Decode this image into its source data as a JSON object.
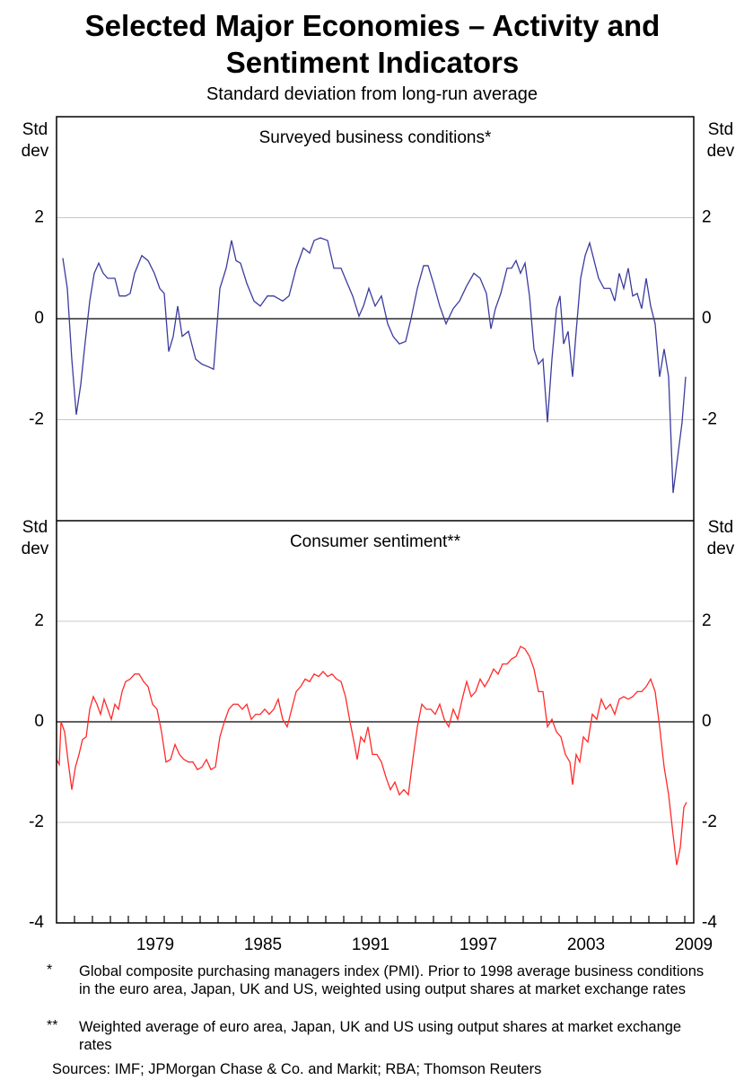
{
  "title": "Selected Major Economies – Activity and Sentiment  Indicators",
  "subtitle": "Standard deviation from long-run average",
  "chart_data": [
    {
      "type": "line",
      "title": "Surveyed business conditions*",
      "ylabel": "Std dev",
      "xlim": [
        1974,
        2009.5
      ],
      "ylim": [
        -4,
        4
      ],
      "yticks": [
        -2,
        0,
        2
      ],
      "grid": true,
      "x": [
        1974.35,
        1974.6,
        1974.85,
        1975.1,
        1975.35,
        1975.6,
        1975.85,
        1976.1,
        1976.35,
        1976.6,
        1976.85,
        1977.25,
        1977.5,
        1977.85,
        1978.1,
        1978.35,
        1978.75,
        1979.1,
        1979.45,
        1979.75,
        1980,
        1980.25,
        1980.5,
        1980.75,
        1981,
        1981.35,
        1981.75,
        1982.1,
        1982.45,
        1982.75,
        1983.1,
        1983.45,
        1983.75,
        1984,
        1984.25,
        1984.6,
        1985,
        1985.35,
        1985.75,
        1986.1,
        1986.6,
        1986.95,
        1987.35,
        1987.75,
        1988.1,
        1988.35,
        1988.7,
        1989.1,
        1989.45,
        1989.85,
        1990.2,
        1990.5,
        1990.85,
        1991.1,
        1991.4,
        1991.75,
        1992.1,
        1992.45,
        1992.75,
        1993.1,
        1993.45,
        1993.75,
        1994.1,
        1994.45,
        1994.7,
        1995,
        1995.35,
        1995.7,
        1996.1,
        1996.45,
        1996.85,
        1997.25,
        1997.6,
        1997.95,
        1998.2,
        1998.45,
        1998.75,
        1999.1,
        1999.35,
        1999.6,
        1999.85,
        2000.1,
        2000.35,
        2000.6,
        2000.85,
        2001.1,
        2001.35,
        2001.6,
        2001.85,
        2002.05,
        2002.25,
        2002.5,
        2002.75,
        2002.95,
        2003.2,
        2003.45,
        2003.7,
        2003.95,
        2004.2,
        2004.5,
        2004.85,
        2005.1,
        2005.35,
        2005.6,
        2005.85,
        2006.1,
        2006.35,
        2006.6,
        2006.85,
        2007.1,
        2007.35,
        2007.6,
        2007.85,
        2008.1,
        2008.35,
        2008.6,
        2008.85,
        2009.05
      ],
      "series": [
        {
          "name": "Surveyed business conditions",
          "color": "#3b3b9e",
          "values": [
            1.2,
            0.6,
            -0.8,
            -1.9,
            -1.3,
            -0.45,
            0.35,
            0.9,
            1.1,
            0.9,
            0.8,
            0.8,
            0.45,
            0.45,
            0.5,
            0.9,
            1.25,
            1.15,
            0.9,
            0.6,
            0.5,
            -0.65,
            -0.35,
            0.25,
            -0.35,
            -0.25,
            -0.8,
            -0.9,
            -0.95,
            -1.0,
            0.6,
            1.0,
            1.55,
            1.15,
            1.1,
            0.7,
            0.35,
            0.25,
            0.45,
            0.45,
            0.35,
            0.45,
            1.0,
            1.4,
            1.3,
            1.55,
            1.6,
            1.55,
            1.0,
            1.0,
            0.7,
            0.45,
            0.05,
            0.25,
            0.6,
            0.25,
            0.45,
            -0.1,
            -0.35,
            -0.5,
            -0.45,
            0,
            0.6,
            1.05,
            1.05,
            0.7,
            0.25,
            -0.1,
            0.2,
            0.35,
            0.65,
            0.9,
            0.8,
            0.5,
            -0.2,
            0.2,
            0.5,
            1.0,
            1.0,
            1.15,
            0.9,
            1.1,
            0.45,
            -0.6,
            -0.9,
            -0.8,
            -2.05,
            -0.8,
            0.2,
            0.45,
            -0.5,
            -0.25,
            -1.15,
            -0.25,
            0.8,
            1.25,
            1.5,
            1.15,
            0.8,
            0.6,
            0.6,
            0.35,
            0.9,
            0.6,
            1.0,
            0.45,
            0.5,
            0.2,
            0.8,
            0.25,
            -0.1,
            -1.15,
            -0.6,
            -1.15,
            -3.45,
            -2.75,
            -2.05,
            -1.15
          ]
        }
      ]
    },
    {
      "type": "line",
      "title": "Consumer sentiment**",
      "ylabel": "Std dev",
      "xlim": [
        1974,
        2009.5
      ],
      "ylim": [
        -4,
        4
      ],
      "yticks": [
        -4,
        -2,
        0,
        2
      ],
      "grid": true,
      "xticks": [
        1979,
        1985,
        1991,
        1997,
        2003,
        2009
      ],
      "xminorticks": [
        1975,
        1976,
        1977,
        1978,
        1979,
        1980,
        1981,
        1982,
        1983,
        1984,
        1985,
        1986,
        1987,
        1988,
        1989,
        1990,
        1991,
        1992,
        1993,
        1994,
        1995,
        1996,
        1997,
        1998,
        1999,
        2000,
        2001,
        2002,
        2003,
        2004,
        2005,
        2006,
        2007,
        2008,
        2009
      ],
      "x": [
        1974,
        1974.15,
        1974.25,
        1974.45,
        1974.65,
        1974.85,
        1975.05,
        1975.25,
        1975.45,
        1975.65,
        1975.85,
        1976.05,
        1976.25,
        1976.45,
        1976.65,
        1976.85,
        1977.05,
        1977.25,
        1977.45,
        1977.65,
        1977.85,
        1978.1,
        1978.35,
        1978.6,
        1978.85,
        1979.1,
        1979.35,
        1979.6,
        1979.85,
        1980.1,
        1980.35,
        1980.6,
        1980.85,
        1981.1,
        1981.35,
        1981.6,
        1981.85,
        1982.1,
        1982.35,
        1982.6,
        1982.85,
        1983.1,
        1983.35,
        1983.6,
        1983.85,
        1984.1,
        1984.35,
        1984.6,
        1984.85,
        1985.1,
        1985.35,
        1985.6,
        1985.85,
        1986.1,
        1986.35,
        1986.6,
        1986.85,
        1987.1,
        1987.35,
        1987.6,
        1987.85,
        1988.1,
        1988.35,
        1988.6,
        1988.85,
        1989.1,
        1989.35,
        1989.6,
        1989.85,
        1990.1,
        1990.35,
        1990.6,
        1990.75,
        1990.95,
        1991.15,
        1991.35,
        1991.6,
        1991.85,
        1992.1,
        1992.35,
        1992.6,
        1992.85,
        1993.1,
        1993.35,
        1993.6,
        1993.85,
        1994.1,
        1994.35,
        1994.6,
        1994.85,
        1995.1,
        1995.35,
        1995.6,
        1995.85,
        1996.1,
        1996.35,
        1996.6,
        1996.85,
        1997.1,
        1997.35,
        1997.6,
        1997.85,
        1998.1,
        1998.35,
        1998.6,
        1998.85,
        1999.1,
        1999.35,
        1999.6,
        1999.85,
        2000.1,
        2000.35,
        2000.6,
        2000.85,
        2001.1,
        2001.35,
        2001.6,
        2001.85,
        2002.1,
        2002.35,
        2002.6,
        2002.75,
        2002.95,
        2003.15,
        2003.35,
        2003.6,
        2003.85,
        2004.1,
        2004.35,
        2004.6,
        2004.85,
        2005.1,
        2005.35,
        2005.6,
        2005.85,
        2006.1,
        2006.35,
        2006.6,
        2006.85,
        2007.1,
        2007.35,
        2007.6,
        2007.85,
        2008.1,
        2008.35,
        2008.55,
        2008.75,
        2008.95,
        2009.1
      ],
      "series": [
        {
          "name": "Consumer sentiment",
          "color": "#ff2a2a",
          "values": [
            -0.75,
            -0.85,
            0,
            -0.2,
            -0.8,
            -1.35,
            -0.9,
            -0.65,
            -0.35,
            -0.3,
            0.25,
            0.5,
            0.35,
            0.15,
            0.45,
            0.25,
            0.05,
            0.35,
            0.25,
            0.6,
            0.8,
            0.85,
            0.95,
            0.95,
            0.8,
            0.7,
            0.35,
            0.25,
            -0.2,
            -0.8,
            -0.75,
            -0.45,
            -0.65,
            -0.75,
            -0.8,
            -0.8,
            -0.95,
            -0.9,
            -0.75,
            -0.95,
            -0.9,
            -0.3,
            0,
            0.25,
            0.35,
            0.35,
            0.25,
            0.35,
            0.05,
            0.15,
            0.15,
            0.25,
            0.15,
            0.25,
            0.45,
            0.05,
            -0.1,
            0.25,
            0.6,
            0.7,
            0.85,
            0.8,
            0.95,
            0.9,
            1.0,
            0.9,
            0.95,
            0.85,
            0.8,
            0.5,
            0,
            -0.45,
            -0.75,
            -0.3,
            -0.4,
            -0.1,
            -0.65,
            -0.65,
            -0.8,
            -1.1,
            -1.35,
            -1.2,
            -1.45,
            -1.35,
            -1.45,
            -0.75,
            -0.1,
            0.35,
            0.25,
            0.25,
            0.15,
            0.35,
            0.05,
            -0.1,
            0.25,
            0.05,
            0.45,
            0.8,
            0.5,
            0.6,
            0.85,
            0.7,
            0.85,
            1.05,
            0.95,
            1.15,
            1.15,
            1.25,
            1.3,
            1.5,
            1.45,
            1.3,
            1.05,
            0.6,
            0.6,
            -0.1,
            0.05,
            -0.2,
            -0.3,
            -0.65,
            -0.8,
            -1.25,
            -0.65,
            -0.8,
            -0.3,
            -0.4,
            0.15,
            0.05,
            0.45,
            0.25,
            0.35,
            0.15,
            0.45,
            0.5,
            0.45,
            0.5,
            0.6,
            0.6,
            0.7,
            0.85,
            0.6,
            -0.1,
            -0.9,
            -1.45,
            -2.25,
            -2.85,
            -2.5,
            -1.7,
            -1.6
          ]
        }
      ]
    }
  ],
  "notes": [
    {
      "marker": "*",
      "text": "Global composite purchasing managers index (PMI). Prior to 1998 average business conditions in the euro area, Japan, UK and US, weighted using output shares at market exchange rates"
    },
    {
      "marker": "**",
      "text": "Weighted average of euro area, Japan, UK and US using output shares at market exchange rates"
    }
  ],
  "sources": "Sources: IMF; JPMorgan Chase & Co. and Markit; RBA; Thomson Reuters"
}
